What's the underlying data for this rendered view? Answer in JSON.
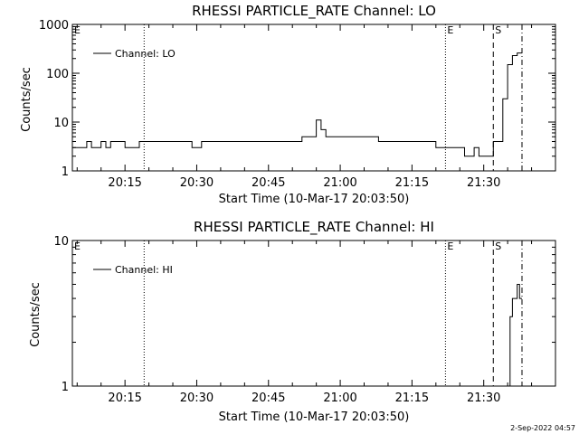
{
  "chart_data": [
    {
      "type": "line",
      "title": "RHESSI PARTICLE_RATE Channel: LO",
      "xlabel": "Start Time (10-Mar-17 20:03:50)",
      "ylabel": "Counts/sec",
      "yscale": "log",
      "ylim": [
        1,
        1000
      ],
      "xlim_minutes": [
        "20:04",
        "21:45"
      ],
      "x_ticks": [
        "20:15",
        "20:30",
        "20:45",
        "21:00",
        "21:15",
        "21:30"
      ],
      "y_ticks": [
        "1",
        "10",
        "100",
        "1000"
      ],
      "legend": {
        "position": "top-left",
        "entries": [
          "Channel: LO"
        ]
      },
      "markers": [
        {
          "label": "E",
          "time": "20:04",
          "style": "none"
        },
        {
          "label": "",
          "time": "20:19",
          "style": "dotted"
        },
        {
          "label": "E",
          "time": "21:22",
          "style": "dotted"
        },
        {
          "label": "S",
          "time": "21:32",
          "style": "dashed"
        },
        {
          "label": "",
          "time": "21:38",
          "style": "dashdot"
        }
      ],
      "series": [
        {
          "name": "Channel: LO",
          "x": [
            "20:04",
            "20:06",
            "20:07",
            "20:08",
            "20:09",
            "20:10",
            "20:11",
            "20:12",
            "20:13",
            "20:14",
            "20:15",
            "20:16",
            "20:17",
            "20:18",
            "20:19",
            "20:20",
            "20:21",
            "20:22",
            "20:23",
            "20:25",
            "20:27",
            "20:29",
            "20:31",
            "20:33",
            "20:35",
            "20:37",
            "20:39",
            "20:41",
            "20:43",
            "20:45",
            "20:47",
            "20:49",
            "20:51",
            "20:52",
            "20:53",
            "20:54",
            "20:55",
            "20:56",
            "20:57",
            "20:58",
            "20:59",
            "21:00",
            "21:02",
            "21:04",
            "21:06",
            "21:08",
            "21:10",
            "21:12",
            "21:14",
            "21:16",
            "21:18",
            "21:20",
            "21:22",
            "21:24",
            "21:25",
            "21:26",
            "21:27",
            "21:28",
            "21:29",
            "21:30",
            "21:31",
            "21:32",
            "21:33",
            "21:34",
            "21:35",
            "21:36",
            "21:37",
            "21:38"
          ],
          "values": [
            3,
            3,
            4,
            3,
            3,
            4,
            3,
            4,
            4,
            4,
            3,
            3,
            3,
            4,
            4,
            4,
            4,
            4,
            4,
            4,
            4,
            3,
            4,
            4,
            4,
            4,
            4,
            4,
            4,
            4,
            4,
            4,
            4,
            5,
            5,
            5,
            11,
            7,
            5,
            5,
            5,
            5,
            5,
            5,
            5,
            4,
            4,
            4,
            4,
            4,
            4,
            3,
            3,
            3,
            3,
            2,
            2,
            3,
            2,
            2,
            2,
            4,
            4,
            30,
            150,
            230,
            260,
            260
          ]
        }
      ]
    },
    {
      "type": "line",
      "title": "RHESSI PARTICLE_RATE Channel: HI",
      "xlabel": "Start Time (10-Mar-17 20:03:50)",
      "ylabel": "Counts/sec",
      "yscale": "log",
      "ylim": [
        1,
        10
      ],
      "xlim_minutes": [
        "20:04",
        "21:45"
      ],
      "x_ticks": [
        "20:15",
        "20:30",
        "20:45",
        "21:00",
        "21:15",
        "21:30"
      ],
      "y_ticks": [
        "1",
        "10"
      ],
      "legend": {
        "position": "top-left",
        "entries": [
          "Channel: HI"
        ]
      },
      "markers": [
        {
          "label": "E",
          "time": "20:04",
          "style": "none"
        },
        {
          "label": "",
          "time": "20:19",
          "style": "dotted"
        },
        {
          "label": "E",
          "time": "21:22",
          "style": "dotted"
        },
        {
          "label": "S",
          "time": "21:32",
          "style": "dashed"
        },
        {
          "label": "",
          "time": "21:38",
          "style": "dashdot"
        }
      ],
      "series": [
        {
          "name": "Channel: HI",
          "x": [
            "21:35",
            "21:35.5",
            "21:36",
            "21:36.5",
            "21:37",
            "21:37.5",
            "21:38"
          ],
          "values": [
            1,
            3,
            4,
            4,
            5,
            4,
            4
          ]
        }
      ]
    }
  ],
  "footer": {
    "timestamp": "2-Sep-2022 04:57"
  }
}
